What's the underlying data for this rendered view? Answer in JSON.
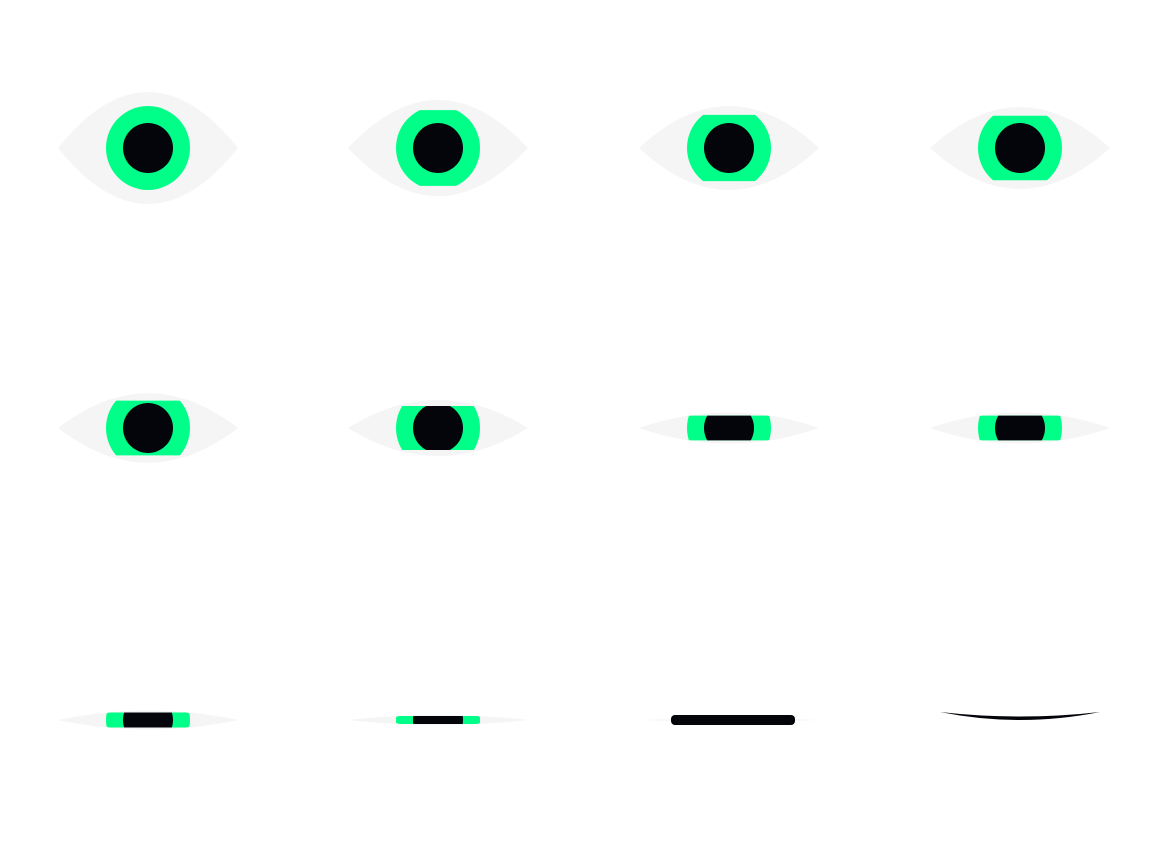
{
  "colors": {
    "background": "#ffffff",
    "sclera": "#f5f5f5",
    "iris": "#00ff88",
    "pupil": "#03050a"
  },
  "frames": [
    {
      "label": "eye-frame-1",
      "openness": 1.0
    },
    {
      "label": "eye-frame-2",
      "openness": 0.86
    },
    {
      "label": "eye-frame-3",
      "openness": 0.75
    },
    {
      "label": "eye-frame-4",
      "openness": 0.73
    },
    {
      "label": "eye-frame-5",
      "openness": 0.62
    },
    {
      "label": "eye-frame-6",
      "openness": 0.5
    },
    {
      "label": "eye-frame-7",
      "openness": 0.28
    },
    {
      "label": "eye-frame-8",
      "openness": 0.28
    },
    {
      "label": "eye-frame-9",
      "openness": 0.17
    },
    {
      "label": "eye-frame-10",
      "openness": 0.09
    },
    {
      "label": "eye-frame-11",
      "openness": 0.03
    },
    {
      "label": "eye-frame-12",
      "openness": 0.0
    }
  ]
}
